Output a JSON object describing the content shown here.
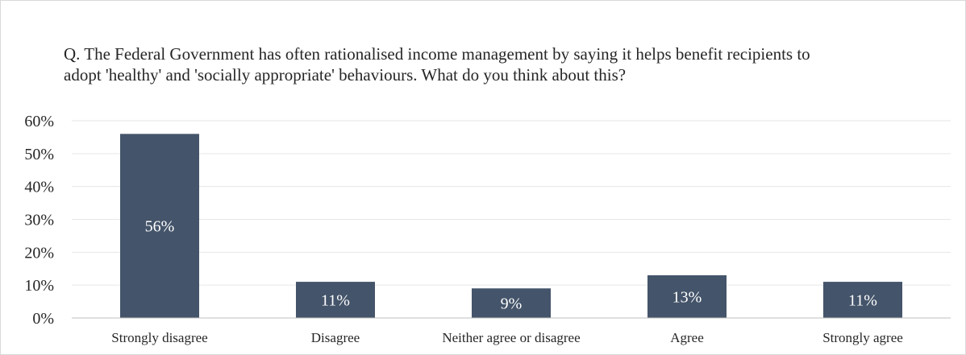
{
  "colors": {
    "bar": "#44546a",
    "gridline": "#e6e6e6",
    "axis": "#bfbfbf",
    "text": "#262626",
    "data_label": "#ffffff"
  },
  "chart_data": {
    "type": "bar",
    "title": "Q. The Federal Government has often rationalised income management by saying it helps benefit recipients to adopt 'healthy' and 'socially appropriate' behaviours. What do you think about this?",
    "xlabel": "",
    "ylabel": "",
    "categories": [
      "Strongly disagree",
      "Disagree",
      "Neither agree or disagree",
      "Agree",
      "Strongly agree"
    ],
    "values": [
      56,
      11,
      9,
      13,
      11
    ],
    "data_labels": [
      "56%",
      "11%",
      "9%",
      "13%",
      "11%"
    ],
    "ylim": [
      0,
      60
    ],
    "yticks": [
      0,
      10,
      20,
      30,
      40,
      50,
      60
    ],
    "ytick_labels": [
      "0%",
      "10%",
      "20%",
      "30%",
      "40%",
      "50%",
      "60%"
    ],
    "grid": true,
    "legend": "none"
  }
}
